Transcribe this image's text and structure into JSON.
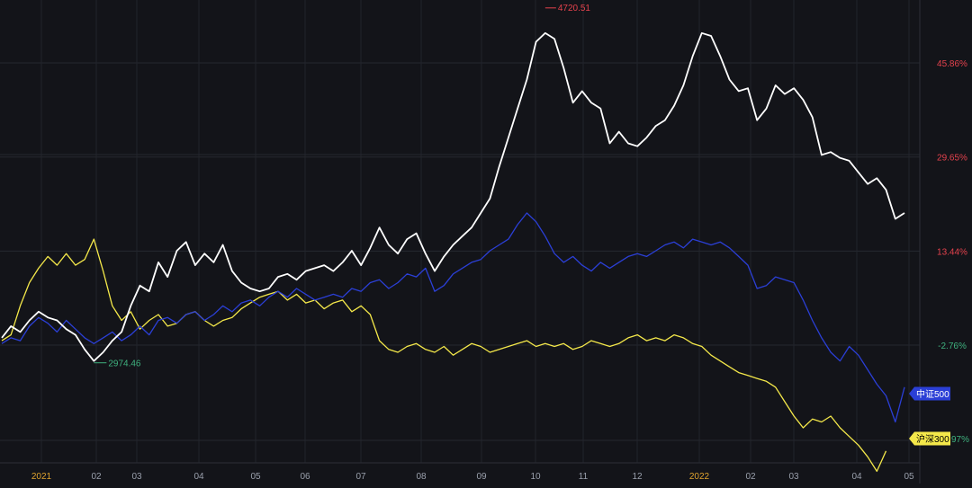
{
  "chart_data": {
    "type": "line",
    "title": "",
    "xlabel": "",
    "ylabel": "",
    "x_tick_labels": [
      {
        "label": "2021",
        "year_mark": true
      },
      {
        "label": "02",
        "year_mark": false
      },
      {
        "label": "03",
        "year_mark": false
      },
      {
        "label": "04",
        "year_mark": false
      },
      {
        "label": "05",
        "year_mark": false
      },
      {
        "label": "06",
        "year_mark": false
      },
      {
        "label": "07",
        "year_mark": false
      },
      {
        "label": "08",
        "year_mark": false
      },
      {
        "label": "09",
        "year_mark": false
      },
      {
        "label": "10",
        "year_mark": false
      },
      {
        "label": "11",
        "year_mark": false
      },
      {
        "label": "12",
        "year_mark": false
      },
      {
        "label": "2022",
        "year_mark": true
      },
      {
        "label": "02",
        "year_mark": false
      },
      {
        "label": "03",
        "year_mark": false
      },
      {
        "label": "04",
        "year_mark": false
      },
      {
        "label": "05",
        "year_mark": false
      }
    ],
    "y_axis": {
      "unit": "%",
      "range": [
        -26,
        54
      ],
      "ticks": [
        {
          "label": "45.86%",
          "value": 45.86,
          "color": "#e5424d"
        },
        {
          "label": "29.65%",
          "value": 29.65,
          "color": "#e5424d"
        },
        {
          "label": "13.44%",
          "value": 13.44,
          "color": "#e5424d"
        },
        {
          "label": "-2.76%",
          "value": -2.76,
          "color": "#3fb27f"
        }
      ]
    },
    "grid": true,
    "annotations": {
      "high": {
        "text": "4720.51",
        "color": "#e5424d"
      },
      "low": {
        "text": "2974.46",
        "color": "#3fb27f"
      },
      "edge_value": {
        "text": "97%",
        "color": "#3fb27f"
      }
    },
    "series": [
      {
        "legend_label": "",
        "color": "#ffffff",
        "values": [
          -1.5,
          0.5,
          -0.5,
          1.5,
          3.0,
          2.0,
          1.5,
          0.0,
          -1.0,
          -3.5,
          -5.5,
          -4.0,
          -2.0,
          -0.5,
          4.0,
          7.5,
          6.5,
          11.5,
          9.0,
          13.5,
          15.0,
          11.0,
          13.0,
          11.5,
          14.5,
          10.0,
          8.0,
          7.0,
          6.5,
          7.0,
          9.0,
          9.5,
          8.5,
          10.0,
          10.5,
          11.0,
          10.0,
          11.5,
          13.5,
          11.0,
          14.0,
          17.5,
          14.5,
          13.0,
          15.5,
          16.5,
          13.0,
          10.0,
          12.5,
          14.5,
          16.0,
          17.5,
          20.0,
          22.5,
          28.0,
          33.0,
          38.0,
          43.0,
          49.5,
          51.0,
          50.0,
          45.0,
          39.0,
          41.0,
          39.0,
          38.0,
          32.0,
          34.0,
          32.0,
          31.5,
          33.0,
          35.0,
          36.0,
          38.5,
          42.0,
          47.0,
          51.0,
          50.5,
          47.0,
          43.0,
          41.0,
          41.5,
          36.0,
          38.0,
          42.0,
          40.5,
          41.5,
          39.5,
          36.5,
          30.0,
          30.5,
          29.5,
          29.0,
          27.0,
          25.0,
          26.0,
          24.0,
          19.0,
          20.0
        ],
        "point_labels": []
      },
      {
        "legend_label": "中证500",
        "color": "#2b3fd6",
        "values": [
          -2.5,
          -1.5,
          -2.0,
          0.5,
          2.0,
          1.0,
          -0.5,
          1.5,
          0.0,
          -1.5,
          -2.5,
          -1.5,
          -0.5,
          -2.0,
          -1.0,
          0.5,
          -1.0,
          1.5,
          2.0,
          1.0,
          2.5,
          3.0,
          1.5,
          2.5,
          4.0,
          3.0,
          4.5,
          5.0,
          4.0,
          5.5,
          6.5,
          5.5,
          7.0,
          6.0,
          5.0,
          5.5,
          6.0,
          5.5,
          7.0,
          6.5,
          8.0,
          8.5,
          7.0,
          8.0,
          9.5,
          9.0,
          10.5,
          6.5,
          7.5,
          9.5,
          10.5,
          11.5,
          12.0,
          13.5,
          14.5,
          15.5,
          18.0,
          20.0,
          18.5,
          16.0,
          13.0,
          11.5,
          12.5,
          11.0,
          10.0,
          11.5,
          10.5,
          11.5,
          12.5,
          13.0,
          12.5,
          13.5,
          14.5,
          15.0,
          14.0,
          15.5,
          15.0,
          14.5,
          15.0,
          14.0,
          12.5,
          11.0,
          7.0,
          7.5,
          9.0,
          8.5,
          8.0,
          5.0,
          1.5,
          -1.5,
          -4.0,
          -5.5,
          -3.0,
          -4.5,
          -7.0,
          -9.5,
          -11.5,
          -16.0,
          -10.0
        ],
        "point_labels": []
      },
      {
        "legend_label": "沪深300",
        "color": "#f4e84a",
        "values": [
          -2.0,
          -1.0,
          4.0,
          8.0,
          10.5,
          12.5,
          11.0,
          13.0,
          11.0,
          12.0,
          15.5,
          10.0,
          4.0,
          1.5,
          3.0,
          0.0,
          1.5,
          2.5,
          0.5,
          1.0,
          2.5,
          3.0,
          1.5,
          0.5,
          1.5,
          2.0,
          3.5,
          4.5,
          5.5,
          6.0,
          6.5,
          5.0,
          6.0,
          4.5,
          5.0,
          3.5,
          4.5,
          5.0,
          3.0,
          4.0,
          2.5,
          -2.0,
          -3.5,
          -4.0,
          -3.0,
          -2.5,
          -3.5,
          -4.0,
          -3.0,
          -4.5,
          -3.5,
          -2.5,
          -3.0,
          -4.0,
          -3.5,
          -3.0,
          -2.5,
          -2.0,
          -3.0,
          -2.5,
          -3.0,
          -2.5,
          -3.5,
          -3.0,
          -2.0,
          -2.5,
          -3.0,
          -2.5,
          -1.5,
          -1.0,
          -2.0,
          -1.5,
          -2.0,
          -1.0,
          -1.5,
          -2.5,
          -3.0,
          -4.5,
          -5.5,
          -6.5,
          -7.5,
          -8.0,
          -8.5,
          -9.0,
          -10.0,
          -12.5,
          -15.0,
          -17.0,
          -15.5,
          -16.0,
          -15.0,
          -17.0,
          -18.5,
          -20.0,
          -22.0,
          -24.5,
          -21.0
        ],
        "point_labels": []
      }
    ]
  }
}
